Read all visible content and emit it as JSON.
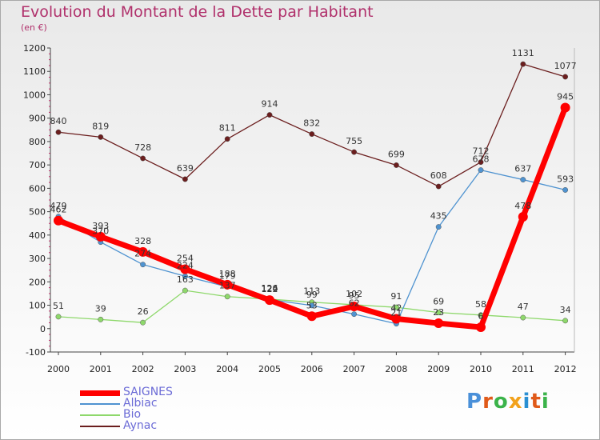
{
  "title": "Evolution du Montant de la Dette par Habitant",
  "subtitle": "(en €)",
  "brand": {
    "text": "Proxiti"
  },
  "chart_data": {
    "type": "line",
    "x": [
      "2000",
      "2001",
      "2002",
      "2003",
      "2004",
      "2005",
      "2006",
      "2007",
      "2008",
      "2009",
      "2010",
      "2011",
      "2012"
    ],
    "ylim": [
      -100,
      1200
    ],
    "yticks": [
      -100,
      0,
      100,
      200,
      300,
      400,
      500,
      600,
      700,
      800,
      900,
      1000,
      1100,
      1200
    ],
    "grid": false,
    "legend_position": "bottom-left",
    "series": [
      {
        "name": "SAIGNES",
        "color": "#ff0000",
        "values": [
          462,
          393,
          328,
          254,
          188,
          122,
          53,
          95,
          42,
          23,
          6,
          478,
          945
        ]
      },
      {
        "name": "Albiac",
        "color": "#4f93d0",
        "values": [
          479,
          370,
          274,
          224,
          179,
          124,
          99,
          62,
          21,
          435,
          678,
          637,
          593
        ]
      },
      {
        "name": "Bio",
        "color": "#8ed86b",
        "values": [
          51,
          39,
          26,
          163,
          137,
          126,
          113,
          102,
          91,
          69,
          58,
          47,
          34
        ]
      },
      {
        "name": "Aynac",
        "color": "#6b1e1e",
        "values": [
          840,
          819,
          728,
          639,
          811,
          914,
          832,
          755,
          699,
          608,
          712,
          1131,
          1077
        ]
      }
    ]
  }
}
